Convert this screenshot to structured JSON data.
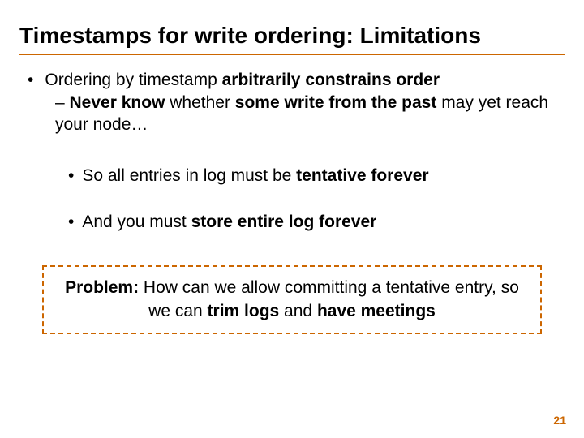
{
  "colors": {
    "accent": "#cc6600",
    "text": "#000000",
    "background": "#ffffff"
  },
  "typography": {
    "title_fontsize": 28,
    "body_fontsize": 21,
    "pagenum_fontsize": 14,
    "font_family": "Arial"
  },
  "title": "Timestamps for write ordering: Limitations",
  "bullets": {
    "l1": {
      "pre": "Ordering by timestamp ",
      "bold": "arbitrarily constrains order"
    },
    "l2": {
      "dash": "– ",
      "bold1": "Never know",
      "mid": " whether ",
      "bold2": "some write from the past",
      "tail": " may yet reach your node…"
    },
    "l3a": {
      "pre": "So all entries in log must be ",
      "bold": "tentative forever"
    },
    "l3b": {
      "pre": "And you must ",
      "bold": "store entire log forever"
    }
  },
  "problem": {
    "label": "Problem:",
    "text_pre": " How can we allow committing a tentative entry, so we can ",
    "bold1": "trim logs",
    "mid": " and ",
    "bold2": "have meetings"
  },
  "page_number": "21"
}
